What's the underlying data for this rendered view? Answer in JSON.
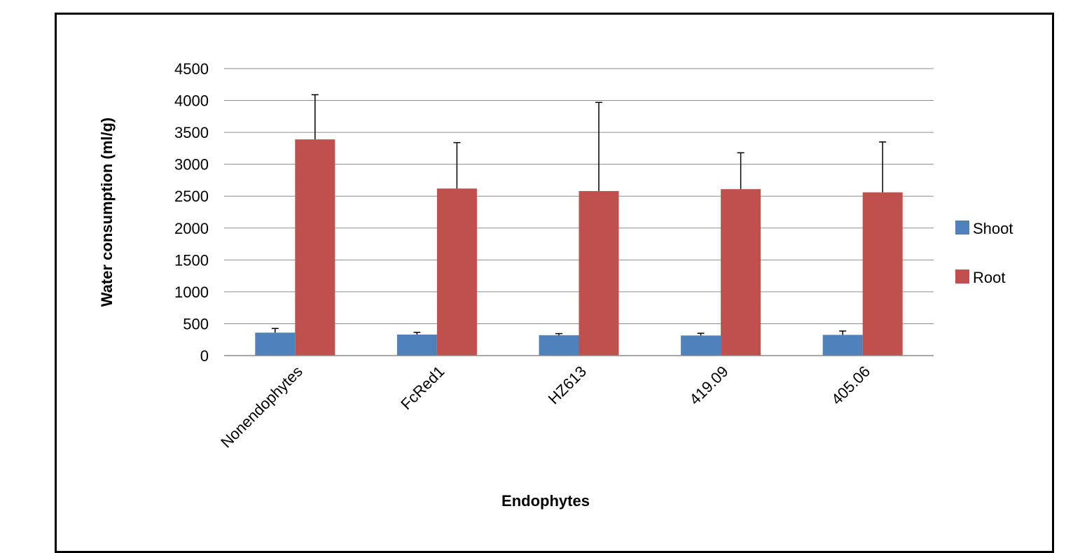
{
  "chart_data": {
    "type": "bar",
    "title": "",
    "xlabel": "Endophytes",
    "ylabel": "Water consumption (ml/g)",
    "ylim": [
      0,
      4500
    ],
    "yticks": [
      "0",
      "500",
      "1000",
      "1500",
      "2000",
      "2500",
      "3000",
      "3500",
      "4000",
      "4500"
    ],
    "categories": [
      "Nonendophytes",
      "FcRed1",
      "HZ613",
      "419.09",
      "405.06"
    ],
    "series": [
      {
        "name": "Shoot",
        "color": "#4F81BD",
        "values": [
          360,
          330,
          320,
          315,
          325
        ],
        "errors": [
          65,
          35,
          25,
          35,
          60
        ]
      },
      {
        "name": "Root",
        "color": "#C0504D",
        "values": [
          3390,
          2620,
          2580,
          2610,
          2560
        ],
        "errors": [
          700,
          720,
          1390,
          570,
          790
        ]
      }
    ],
    "gridlines": true,
    "legend_position": "right"
  }
}
